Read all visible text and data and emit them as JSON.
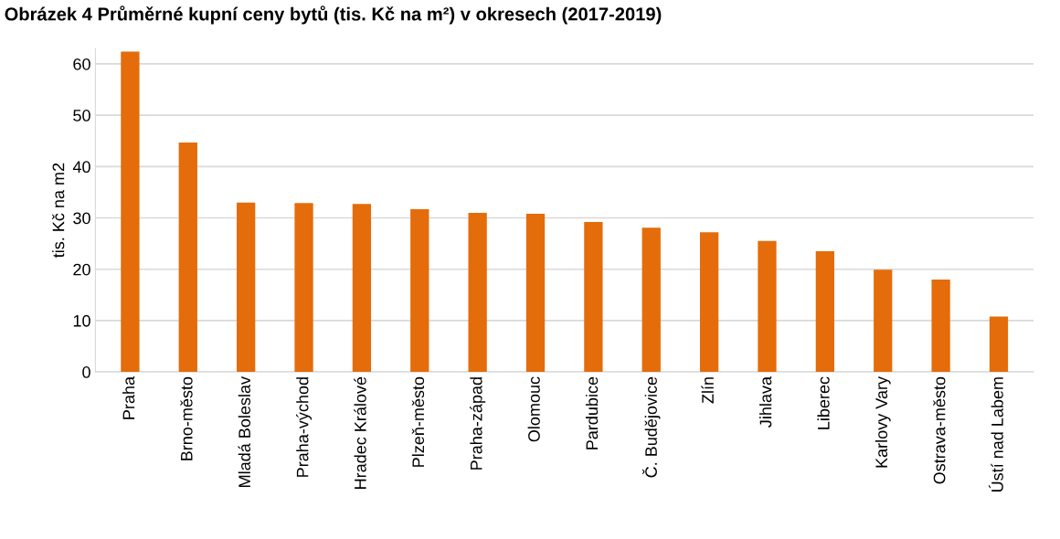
{
  "chart_data": {
    "type": "bar",
    "title": "Obrázek 4 Průměrné kupní ceny bytů (tis. Kč na m²) v okresech (2017-2019)",
    "ylabel": "tis. Kč na m2",
    "categories": [
      "Praha",
      "Brno-město",
      "Mladá Boleslav",
      "Praha-východ",
      "Hradec Králové",
      "Plzeň-město",
      "Praha-západ",
      "Olomouc",
      "Pardubice",
      "Č. Budějovice",
      "Zlín",
      "Jihlava",
      "Liberec",
      "Karlovy Vary",
      "Ostrava-město",
      "Ústí nad Labem"
    ],
    "values": [
      62.4,
      44.7,
      33.0,
      32.9,
      32.7,
      31.7,
      31.0,
      30.8,
      29.2,
      28.1,
      27.2,
      25.5,
      23.5,
      19.9,
      18.0,
      10.8
    ],
    "color": "#e46c0a",
    "ylim": [
      0,
      63
    ],
    "yticks": [
      0,
      10,
      20,
      30,
      40,
      50,
      60
    ],
    "grid": "y"
  }
}
